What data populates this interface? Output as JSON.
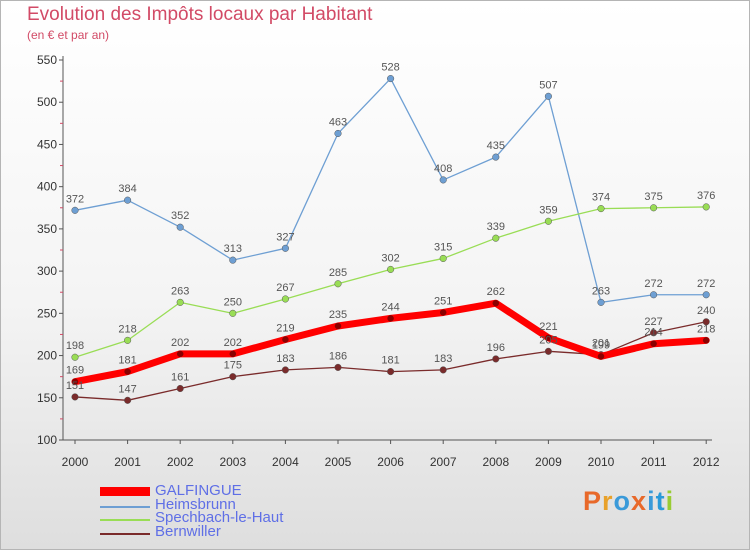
{
  "chart_data": {
    "type": "line",
    "title": "Evolution des Impôts locaux par Habitant",
    "subtitle": "(en € et par an)",
    "xlabel": "",
    "ylabel": "",
    "ylim": [
      100,
      550
    ],
    "yticks": [
      100,
      150,
      200,
      250,
      300,
      350,
      400,
      450,
      500,
      550
    ],
    "grid": false,
    "x": [
      "2000",
      "2001",
      "2002",
      "2003",
      "2004",
      "2005",
      "2006",
      "2007",
      "2008",
      "2009",
      "2010",
      "2011",
      "2012"
    ],
    "series": [
      {
        "name": "GALFINGUE",
        "color": "#ff0000",
        "values": [
          169,
          181,
          202,
          202,
          219,
          235,
          244,
          251,
          262,
          221,
          199,
          214,
          218
        ]
      },
      {
        "name": "Heimsbrunn",
        "color": "#6e9fd3",
        "values": [
          372,
          384,
          352,
          313,
          327,
          463,
          528,
          408,
          435,
          507,
          263,
          272,
          272
        ]
      },
      {
        "name": "Spechbach-le-Haut",
        "color": "#99dd55",
        "values": [
          198,
          218,
          263,
          250,
          267,
          285,
          302,
          315,
          339,
          359,
          374,
          375,
          376
        ]
      },
      {
        "name": "Bernwiller",
        "color": "#7a2b2b",
        "values": [
          151,
          147,
          161,
          175,
          183,
          186,
          181,
          183,
          196,
          205,
          201,
          227,
          240
        ]
      }
    ],
    "legend_position": "bottom-left"
  },
  "logo": {
    "text": "Proxiti",
    "colors": [
      "#e8692a",
      "#e8a12a",
      "#3a9ad9",
      "#e8692a",
      "#3a9ad9",
      "#2a9ad9",
      "#99cc33"
    ]
  }
}
